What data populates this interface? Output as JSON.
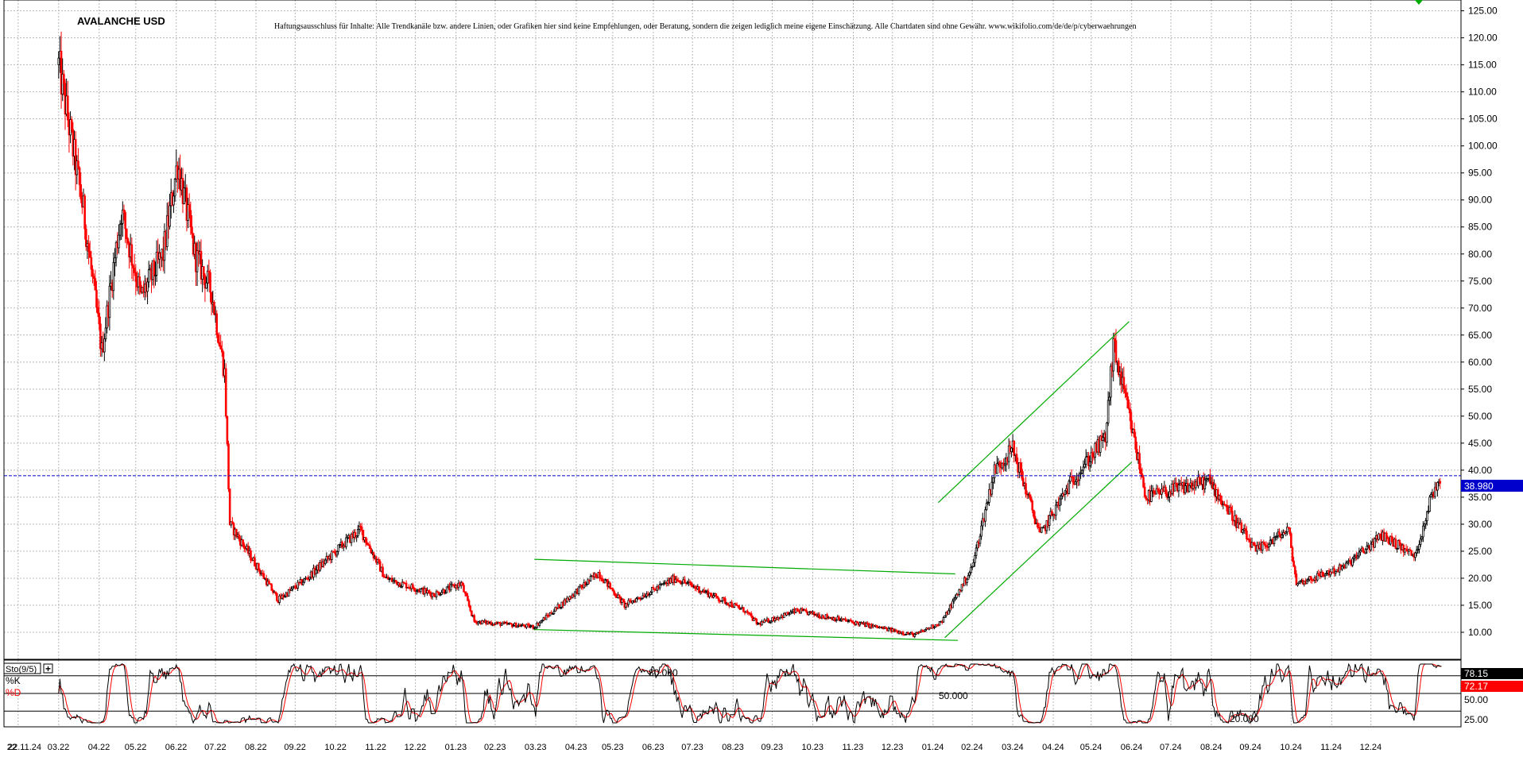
{
  "title": "AVALANCHE USD",
  "disclaimer": "Haftungsausschluss für Inhalte: Alle Trendkanäle bzw. andere Linien, oder Grafiken hier sind keine Empfehlungen, oder Beratung, sondern die zeigen lediglich meine eigene Einschätzung. Alle Chartdaten sind ohne Gewähr.  www.wikifolio.com/de/de/p/cyberwaehrungen",
  "colors": {
    "grid": "#b8b8b8",
    "up_candle": "#000000",
    "down_candle": "#ff0000",
    "trendline": "#00aa00",
    "price_line": "#0000cc",
    "k_line": "#000000",
    "d_line": "#ff0000"
  },
  "chart_data": [
    {
      "type": "candlestick",
      "title": "AVALANCHE USD",
      "ylim": [
        5,
        127
      ],
      "yticks": [
        "125.00",
        "120.00",
        "115.00",
        "110.00",
        "105.00",
        "100.00",
        "95.00",
        "90.00",
        "85.00",
        "80.00",
        "75.00",
        "70.00",
        "65.00",
        "60.00",
        "55.00",
        "50.00",
        "45.00",
        "40.00",
        "35.00",
        "30.00",
        "25.00",
        "20.00",
        "15.00",
        "10.00"
      ],
      "current_price_label": "38.980",
      "current_price": 38.98,
      "x_labels": [
        "22.11.24",
        "22",
        "03.22",
        "04.22",
        "05.22",
        "06.22",
        "07.22",
        "08.22",
        "09.22",
        "10.22",
        "11.22",
        "12.22",
        "01.23",
        "02.23",
        "03.23",
        "04.23",
        "05.23",
        "06.23",
        "07.23",
        "08.23",
        "09.23",
        "10.23",
        "11.23",
        "12.23",
        "01.24",
        "02.24",
        "03.24",
        "04.24",
        "05.24",
        "06.24",
        "07.24",
        "08.24",
        "09.24",
        "10.24",
        "11.24",
        "12.24"
      ],
      "path_anchors": [
        {
          "date": "2022-01-01",
          "price": 115
        },
        {
          "date": "2022-01-20",
          "price": 88
        },
        {
          "date": "2022-02-03",
          "price": 62
        },
        {
          "date": "2022-02-18",
          "price": 88
        },
        {
          "date": "2022-03-05",
          "price": 72
        },
        {
          "date": "2022-03-22",
          "price": 80
        },
        {
          "date": "2022-04-02",
          "price": 97
        },
        {
          "date": "2022-04-15",
          "price": 80
        },
        {
          "date": "2022-04-28",
          "price": 73
        },
        {
          "date": "2022-05-08",
          "price": 58
        },
        {
          "date": "2022-05-12",
          "price": 30
        },
        {
          "date": "2022-05-28",
          "price": 24
        },
        {
          "date": "2022-06-18",
          "price": 16
        },
        {
          "date": "2022-07-10",
          "price": 20
        },
        {
          "date": "2022-08-10",
          "price": 27
        },
        {
          "date": "2022-08-20",
          "price": 29
        },
        {
          "date": "2022-09-08",
          "price": 20
        },
        {
          "date": "2022-10-15",
          "price": 17
        },
        {
          "date": "2022-11-05",
          "price": 19
        },
        {
          "date": "2022-11-15",
          "price": 12
        },
        {
          "date": "2022-12-31",
          "price": 11
        },
        {
          "date": "2023-02-18",
          "price": 21
        },
        {
          "date": "2023-03-10",
          "price": 15
        },
        {
          "date": "2023-04-18",
          "price": 20
        },
        {
          "date": "2023-06-10",
          "price": 14
        },
        {
          "date": "2023-06-20",
          "price": 11.5
        },
        {
          "date": "2023-07-20",
          "price": 14
        },
        {
          "date": "2023-10-18",
          "price": 9.5
        },
        {
          "date": "2023-11-08",
          "price": 12
        },
        {
          "date": "2023-12-01",
          "price": 22
        },
        {
          "date": "2023-12-18",
          "price": 40
        },
        {
          "date": "2024-01-01",
          "price": 44
        },
        {
          "date": "2024-01-22",
          "price": 28
        },
        {
          "date": "2024-02-15",
          "price": 38
        },
        {
          "date": "2024-03-12",
          "price": 46
        },
        {
          "date": "2024-03-18",
          "price": 63
        },
        {
          "date": "2024-03-30",
          "price": 50
        },
        {
          "date": "2024-04-12",
          "price": 35
        },
        {
          "date": "2024-05-30",
          "price": 38
        },
        {
          "date": "2024-07-05",
          "price": 25
        },
        {
          "date": "2024-07-30",
          "price": 29
        },
        {
          "date": "2024-08-05",
          "price": 19
        },
        {
          "date": "2024-09-10",
          "price": 22
        },
        {
          "date": "2024-10-10",
          "price": 28
        },
        {
          "date": "2024-11-04",
          "price": 24
        },
        {
          "date": "2024-11-16",
          "price": 35
        },
        {
          "date": "2024-11-24",
          "price": 38.98
        }
      ],
      "trendlines": [
        {
          "from": {
            "date": "2022-12-31",
            "price": 23.5
          },
          "to": {
            "date": "2023-11-18",
            "price": 20.8
          }
        },
        {
          "from": {
            "date": "2022-12-31",
            "price": 10.5
          },
          "to": {
            "date": "2023-11-20",
            "price": 8.5
          }
        },
        {
          "from": {
            "date": "2023-11-05",
            "price": 34
          },
          "to": {
            "date": "2024-03-30",
            "price": 67.5
          }
        },
        {
          "from": {
            "date": "2023-11-10",
            "price": 9
          },
          "to": {
            "date": "2024-04-01",
            "price": 41.5
          }
        }
      ]
    },
    {
      "type": "line",
      "title": "Sto(9/5)",
      "ylim": [
        0,
        100
      ],
      "yticks": [
        "78.15",
        "72.17",
        "50.00",
        "25.00"
      ],
      "series": [
        {
          "name": "%K",
          "last": 78.15
        },
        {
          "name": "%D",
          "last": 72.17
        }
      ],
      "level_lines": [
        80,
        50,
        20
      ],
      "level_labels": [
        "80.000",
        "50.000",
        "20.000"
      ]
    }
  ]
}
